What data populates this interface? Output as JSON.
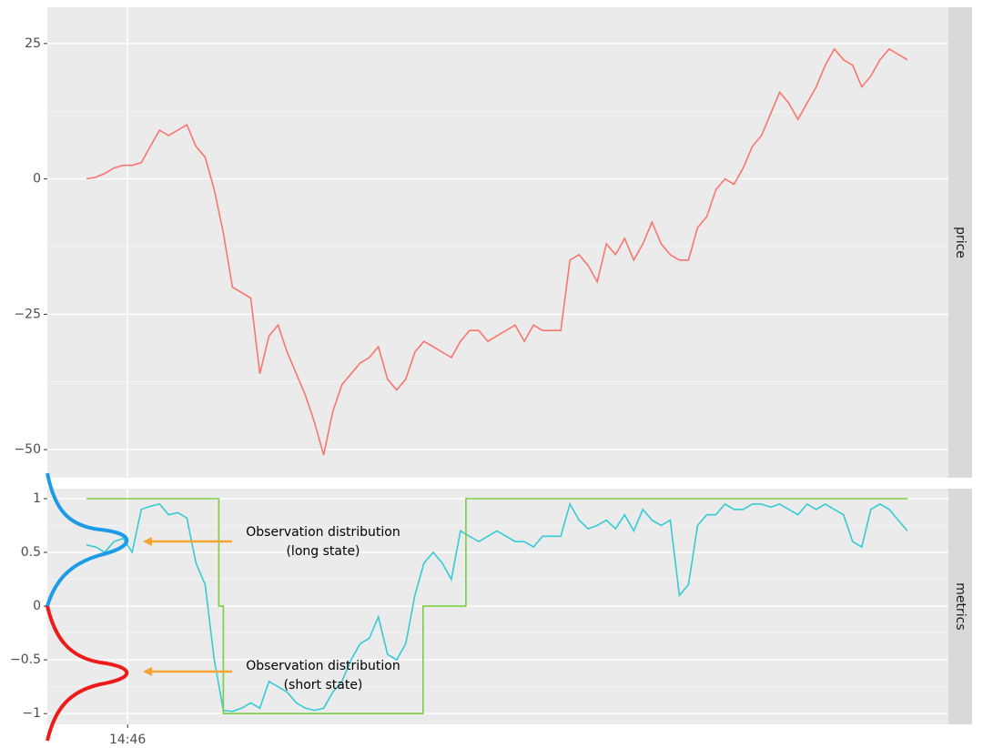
{
  "chart_data": [
    {
      "type": "line",
      "strip": "price",
      "x": [
        0,
        1,
        2,
        3,
        4,
        5,
        6,
        7,
        8,
        9,
        10,
        11,
        12,
        13,
        14,
        15,
        16,
        17,
        18,
        19,
        20,
        21,
        22,
        23,
        24,
        25,
        26,
        27,
        28,
        29,
        30,
        31,
        32,
        33,
        34,
        35,
        36,
        37,
        38,
        39,
        40,
        41,
        42,
        43,
        44,
        45,
        46,
        47,
        48,
        49,
        50,
        51,
        52,
        53,
        54,
        55,
        56,
        57,
        58,
        59,
        60,
        61,
        62,
        63,
        64,
        65,
        66,
        67,
        68,
        69,
        70,
        71,
        72,
        73,
        74,
        75,
        76,
        77,
        78,
        79,
        80,
        81,
        82,
        83,
        84,
        85,
        86,
        87,
        88,
        89,
        90
      ],
      "xlim": [
        -4.3,
        94.5
      ],
      "xticks": [
        {
          "value": 4.5,
          "label": "14:46"
        }
      ],
      "ylim": [
        -55.2,
        31.7
      ],
      "yticks": [
        {
          "value": -50,
          "label": "−50"
        },
        {
          "value": -25,
          "label": "−25"
        },
        0,
        25
      ],
      "grid": true,
      "series": [
        {
          "color": "#f8766d",
          "values": [
            0,
            0.3,
            1,
            2,
            2.5,
            2.5,
            3,
            6,
            9,
            8,
            9,
            10,
            6,
            4,
            -2,
            -10,
            -20,
            -21,
            -22,
            -36,
            -29,
            -27,
            -32,
            -36,
            -40,
            -45,
            -51,
            -43,
            -38,
            -36,
            -34,
            -33,
            -31,
            -37,
            -39,
            -37,
            -32,
            -30,
            -31,
            -32,
            -33,
            -30,
            -28,
            -28,
            -30,
            -29,
            -28,
            -27,
            -30,
            -27,
            -28,
            -28,
            -28,
            -15,
            -14,
            -16,
            -19,
            -12,
            -14,
            -11,
            -15,
            -12,
            -8,
            -12,
            -14,
            -15,
            -15,
            -9,
            -7,
            -2,
            0,
            -1,
            2,
            6,
            8,
            12,
            16,
            14,
            11,
            14,
            17,
            21,
            24,
            22,
            21,
            17,
            19,
            22,
            24,
            23,
            22
          ]
        }
      ]
    },
    {
      "type": "line",
      "strip": "metrics",
      "x": [
        0,
        1,
        2,
        3,
        4,
        5,
        6,
        7,
        8,
        9,
        10,
        11,
        12,
        13,
        14,
        15,
        16,
        17,
        18,
        19,
        20,
        21,
        22,
        23,
        24,
        25,
        26,
        27,
        28,
        29,
        30,
        31,
        32,
        33,
        34,
        35,
        36,
        37,
        38,
        39,
        40,
        41,
        42,
        43,
        44,
        45,
        46,
        47,
        48,
        49,
        50,
        51,
        52,
        53,
        54,
        55,
        56,
        57,
        58,
        59,
        60,
        61,
        62,
        63,
        64,
        65,
        66,
        67,
        68,
        69,
        70,
        71,
        72,
        73,
        74,
        75,
        76,
        77,
        78,
        79,
        80,
        81,
        82,
        83,
        84,
        85,
        86,
        87,
        88,
        89,
        90
      ],
      "xlim": [
        -4.3,
        94.5
      ],
      "xticks": [
        {
          "value": 4.5,
          "label": "14:46"
        }
      ],
      "ylim": [
        -1.1,
        1.093
      ],
      "yticks": [
        {
          "value": -1,
          "label": "−1"
        },
        {
          "value": -0.5,
          "label": "−0.5"
        },
        0,
        0.5,
        1
      ],
      "grid": true,
      "annotations": [
        "Observation distribution",
        "(long state)",
        "Observation distribution",
        "(short state)"
      ],
      "series": [
        {
          "color": "#35cbd3",
          "values": [
            0.57,
            0.55,
            0.5,
            0.6,
            0.63,
            0.5,
            0.9,
            0.93,
            0.95,
            0.85,
            0.87,
            0.82,
            0.4,
            0.2,
            -0.5,
            -0.97,
            -0.98,
            -0.95,
            -0.9,
            -0.95,
            -0.7,
            -0.75,
            -0.8,
            -0.9,
            -0.95,
            -0.97,
            -0.95,
            -0.8,
            -0.7,
            -0.5,
            -0.35,
            -0.3,
            -0.1,
            -0.45,
            -0.5,
            -0.35,
            0.1,
            0.4,
            0.5,
            0.4,
            0.25,
            0.7,
            0.65,
            0.6,
            0.65,
            0.7,
            0.65,
            0.6,
            0.6,
            0.55,
            0.65,
            0.65,
            0.65,
            0.95,
            0.8,
            0.72,
            0.75,
            0.8,
            0.72,
            0.85,
            0.7,
            0.9,
            0.8,
            0.75,
            0.8,
            0.1,
            0.2,
            0.75,
            0.85,
            0.85,
            0.95,
            0.9,
            0.9,
            0.95,
            0.95,
            0.92,
            0.95,
            0.9,
            0.85,
            0.95,
            0.9,
            0.95,
            0.9,
            0.85,
            0.6,
            0.55,
            0.9,
            0.95,
            0.9,
            0.8,
            0.7
          ]
        },
        {
          "color": "#7ccd44",
          "x": [
            0,
            14.5,
            14.5,
            15,
            15,
            36.9,
            36.9,
            41.6,
            41.6,
            90
          ],
          "values": [
            1,
            1,
            0,
            0,
            -1,
            -1,
            0,
            0,
            1,
            1
          ]
        }
      ]
    }
  ]
}
